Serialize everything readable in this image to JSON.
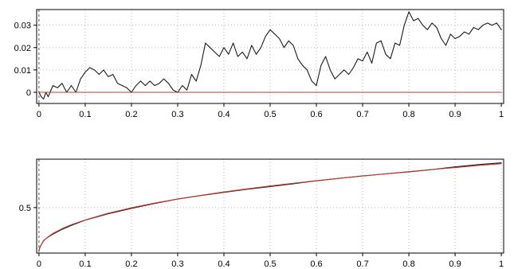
{
  "chart_data": [
    {
      "type": "line",
      "title": "",
      "xlabel": "",
      "ylabel": "",
      "xlim": [
        -0.005,
        1.005
      ],
      "ylim": [
        -0.005,
        0.037
      ],
      "grid": true,
      "x_ticks": [
        0,
        0.1,
        0.2,
        0.3,
        0.4,
        0.5,
        0.6,
        0.7,
        0.8,
        0.9,
        1
      ],
      "x_tick_labels": [
        "0",
        "0.1",
        "0.2",
        "0.3",
        "0.4",
        "0.5",
        "0.6",
        "0.7",
        "0.8",
        "0.9",
        "1"
      ],
      "y_ticks": [
        0,
        0.01,
        0.02,
        0.03
      ],
      "y_tick_labels": [
        "0",
        "0.01",
        "0.02",
        "0.03"
      ],
      "series": [
        {
          "color": "#1a1a1a",
          "x": [
            0,
            0.005,
            0.01,
            0.015,
            0.02,
            0.03,
            0.04,
            0.05,
            0.06,
            0.07,
            0.08,
            0.09,
            0.1,
            0.11,
            0.12,
            0.13,
            0.14,
            0.15,
            0.16,
            0.17,
            0.18,
            0.19,
            0.2,
            0.21,
            0.22,
            0.23,
            0.24,
            0.25,
            0.26,
            0.27,
            0.28,
            0.29,
            0.3,
            0.31,
            0.32,
            0.33,
            0.34,
            0.35,
            0.36,
            0.37,
            0.38,
            0.39,
            0.4,
            0.41,
            0.42,
            0.43,
            0.44,
            0.45,
            0.46,
            0.47,
            0.48,
            0.49,
            0.5,
            0.51,
            0.52,
            0.53,
            0.54,
            0.55,
            0.56,
            0.57,
            0.58,
            0.59,
            0.6,
            0.61,
            0.62,
            0.63,
            0.64,
            0.65,
            0.66,
            0.67,
            0.68,
            0.69,
            0.7,
            0.71,
            0.72,
            0.73,
            0.74,
            0.75,
            0.76,
            0.77,
            0.78,
            0.79,
            0.8,
            0.81,
            0.82,
            0.83,
            0.84,
            0.85,
            0.86,
            0.87,
            0.88,
            0.89,
            0.9,
            0.91,
            0.92,
            0.93,
            0.94,
            0.95,
            0.96,
            0.97,
            0.98,
            0.99,
            1
          ],
          "y": [
            0,
            -0.002,
            -0.003,
            0.0,
            -0.002,
            0.003,
            0.002,
            0.004,
            0.0,
            0.003,
            0.0,
            0.006,
            0.009,
            0.011,
            0.01,
            0.008,
            0.01,
            0.007,
            0.008,
            0.004,
            0.003,
            0.002,
            0.0,
            0.003,
            0.005,
            0.003,
            0.005,
            0.003,
            0.004,
            0.006,
            0.004,
            0.001,
            0.0,
            0.003,
            0.001,
            0.008,
            0.005,
            0.012,
            0.022,
            0.02,
            0.018,
            0.016,
            0.02,
            0.017,
            0.022,
            0.016,
            0.018,
            0.015,
            0.021,
            0.017,
            0.02,
            0.025,
            0.028,
            0.026,
            0.024,
            0.02,
            0.023,
            0.021,
            0.015,
            0.012,
            0.01,
            0.005,
            0.003,
            0.012,
            0.016,
            0.01,
            0.006,
            0.008,
            0.01,
            0.008,
            0.011,
            0.015,
            0.014,
            0.018,
            0.013,
            0.022,
            0.023,
            0.017,
            0.015,
            0.022,
            0.021,
            0.03,
            0.036,
            0.032,
            0.033,
            0.03,
            0.028,
            0.031,
            0.029,
            0.024,
            0.021,
            0.026,
            0.024,
            0.025,
            0.027,
            0.026,
            0.029,
            0.028,
            0.03,
            0.031,
            0.03,
            0.031,
            0.028
          ]
        },
        {
          "color": "#c0392b",
          "x": [
            0,
            1
          ],
          "y": [
            0,
            0
          ]
        }
      ]
    },
    {
      "type": "line",
      "title": "",
      "xlabel": "",
      "ylabel": "",
      "xlim": [
        -0.005,
        1.005
      ],
      "ylim": [
        0.03,
        1.0
      ],
      "grid": true,
      "x_ticks": [
        0,
        0.1,
        0.2,
        0.3,
        0.4,
        0.5,
        0.6,
        0.7,
        0.8,
        0.9,
        1
      ],
      "x_tick_labels": [
        "0",
        "0.1",
        "0.2",
        "0.3",
        "0.4",
        "0.5",
        "0.6",
        "0.7",
        "0.8",
        "0.9",
        "1"
      ],
      "y_ticks": [
        0.5
      ],
      "y_tick_labels": [
        "0.5"
      ],
      "series": [
        {
          "color": "#1a1a1a",
          "x": [
            0,
            0.002,
            0.005,
            0.01,
            0.02,
            0.03,
            0.05,
            0.07,
            0.1,
            0.15,
            0.2,
            0.25,
            0.3,
            0.35,
            0.4,
            0.45,
            0.5,
            0.55,
            0.6,
            0.65,
            0.7,
            0.75,
            0.8,
            0.85,
            0.9,
            0.95,
            1
          ],
          "y": [
            0.055,
            0.088,
            0.117,
            0.16,
            0.196,
            0.225,
            0.275,
            0.316,
            0.37,
            0.436,
            0.492,
            0.542,
            0.588,
            0.624,
            0.657,
            0.689,
            0.717,
            0.746,
            0.776,
            0.802,
            0.827,
            0.848,
            0.869,
            0.892,
            0.92,
            0.944,
            0.962
          ]
        },
        {
          "color": "#c0392b",
          "x": [
            0,
            0.002,
            0.005,
            0.01,
            0.02,
            0.03,
            0.05,
            0.07,
            0.1,
            0.15,
            0.2,
            0.25,
            0.3,
            0.35,
            0.4,
            0.45,
            0.5,
            0.55,
            0.6,
            0.65,
            0.7,
            0.75,
            0.8,
            0.85,
            0.9,
            0.95,
            1
          ],
          "y": [
            0.05,
            0.089,
            0.118,
            0.156,
            0.199,
            0.232,
            0.282,
            0.323,
            0.372,
            0.442,
            0.498,
            0.546,
            0.588,
            0.626,
            0.661,
            0.693,
            0.723,
            0.751,
            0.777,
            0.802,
            0.826,
            0.849,
            0.871,
            0.893,
            0.913,
            0.934,
            0.953
          ]
        }
      ]
    }
  ]
}
